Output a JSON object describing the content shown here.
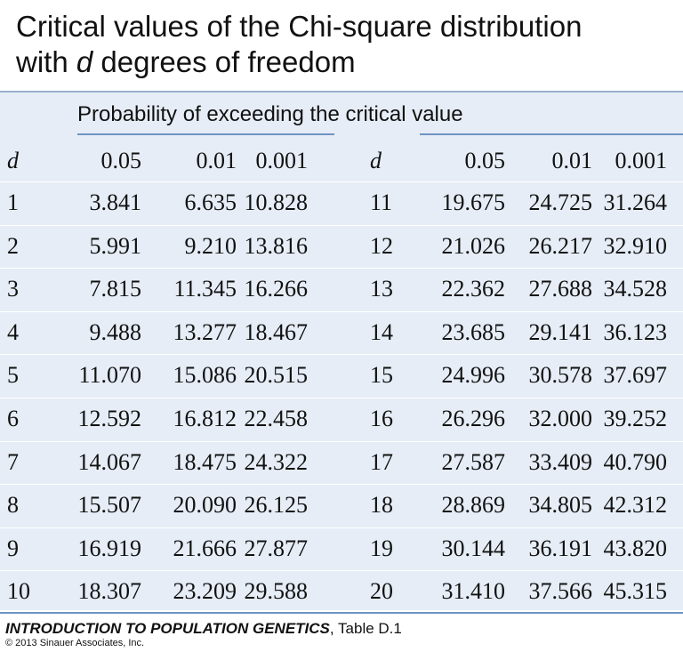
{
  "title": {
    "line1": "Critical values of the Chi-square distribution",
    "line2_prefix": "with ",
    "line2_var": "d",
    "line2_suffix": " degrees of freedom"
  },
  "subheader": "Probability of exceeding the critical value",
  "columns": {
    "d": "d",
    "p05": "0.05",
    "p01": "0.01",
    "p001": "0.001"
  },
  "left_rows": [
    {
      "d": "1",
      "p05": "3.841",
      "p01": "6.635",
      "p001": "10.828"
    },
    {
      "d": "2",
      "p05": "5.991",
      "p01": "9.210",
      "p001": "13.816"
    },
    {
      "d": "3",
      "p05": "7.815",
      "p01": "11.345",
      "p001": "16.266"
    },
    {
      "d": "4",
      "p05": "9.488",
      "p01": "13.277",
      "p001": "18.467"
    },
    {
      "d": "5",
      "p05": "11.070",
      "p01": "15.086",
      "p001": "20.515"
    },
    {
      "d": "6",
      "p05": "12.592",
      "p01": "16.812",
      "p001": "22.458"
    },
    {
      "d": "7",
      "p05": "14.067",
      "p01": "18.475",
      "p001": "24.322"
    },
    {
      "d": "8",
      "p05": "15.507",
      "p01": "20.090",
      "p001": "26.125"
    },
    {
      "d": "9",
      "p05": "16.919",
      "p01": "21.666",
      "p001": "27.877"
    },
    {
      "d": "10",
      "p05": "18.307",
      "p01": "23.209",
      "p001": "29.588"
    }
  ],
  "right_rows": [
    {
      "d": "11",
      "p05": "19.675",
      "p01": "24.725",
      "p001": "31.264"
    },
    {
      "d": "12",
      "p05": "21.026",
      "p01": "26.217",
      "p001": "32.910"
    },
    {
      "d": "13",
      "p05": "22.362",
      "p01": "27.688",
      "p001": "34.528"
    },
    {
      "d": "14",
      "p05": "23.685",
      "p01": "29.141",
      "p001": "36.123"
    },
    {
      "d": "15",
      "p05": "24.996",
      "p01": "30.578",
      "p001": "37.697"
    },
    {
      "d": "16",
      "p05": "26.296",
      "p01": "32.000",
      "p001": "39.252"
    },
    {
      "d": "17",
      "p05": "27.587",
      "p01": "33.409",
      "p001": "40.790"
    },
    {
      "d": "18",
      "p05": "28.869",
      "p01": "34.805",
      "p001": "42.312"
    },
    {
      "d": "19",
      "p05": "30.144",
      "p01": "36.191",
      "p001": "43.820"
    },
    {
      "d": "20",
      "p05": "31.410",
      "p01": "37.566",
      "p001": "45.315"
    }
  ],
  "footer": {
    "book_title": "INTRODUCTION TO POPULATION GENETICS",
    "table_ref": ", Table D.1",
    "copyright": "© 2013 Sinauer Associates, Inc."
  }
}
